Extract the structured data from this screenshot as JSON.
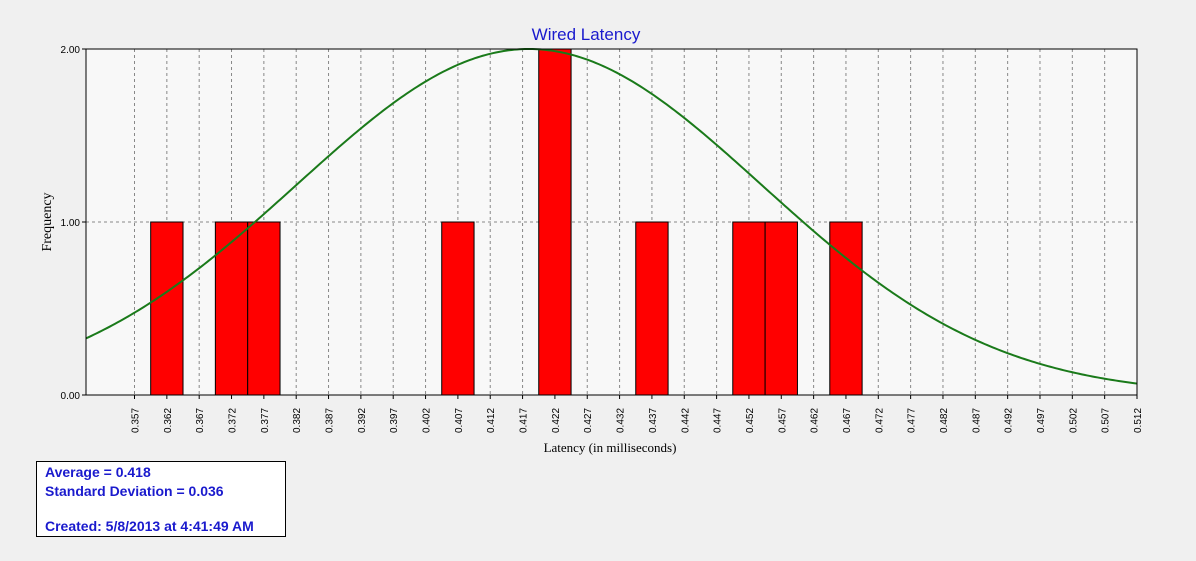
{
  "chart_data": {
    "type": "bar",
    "title": "Wired Latency",
    "xlabel": "Latency (in milliseconds)",
    "ylabel": "Frequency",
    "ylim": [
      0,
      2
    ],
    "yticks": [
      "0.00",
      "1.00",
      "2.00"
    ],
    "x_ticks": [
      "0.357",
      "0.362",
      "0.367",
      "0.372",
      "0.377",
      "0.382",
      "0.387",
      "0.392",
      "0.397",
      "0.402",
      "0.407",
      "0.412",
      "0.417",
      "0.422",
      "0.427",
      "0.432",
      "0.437",
      "0.442",
      "0.447",
      "0.452",
      "0.457",
      "0.462",
      "0.467",
      "0.472",
      "0.477",
      "0.482",
      "0.487",
      "0.492",
      "0.497",
      "0.502",
      "0.507",
      "0.512"
    ],
    "bars": [
      {
        "x": 0.362,
        "value": 1
      },
      {
        "x": 0.372,
        "value": 1
      },
      {
        "x": 0.377,
        "value": 1
      },
      {
        "x": 0.407,
        "value": 1
      },
      {
        "x": 0.422,
        "value": 2
      },
      {
        "x": 0.437,
        "value": 1
      },
      {
        "x": 0.452,
        "value": 1
      },
      {
        "x": 0.457,
        "value": 1
      },
      {
        "x": 0.467,
        "value": 1
      }
    ],
    "bar_color": "#ff0000",
    "curve": {
      "type": "normal-fit",
      "mean": 0.418,
      "std": 0.036,
      "peak": 2,
      "color": "#1a7a1a"
    },
    "grid": true,
    "title_color": "#1a1acd"
  },
  "stats": {
    "average": "Average = 0.418",
    "std_dev": "Standard Deviation = 0.036",
    "created": "Created: 5/8/2013 at 4:41:49 AM"
  }
}
